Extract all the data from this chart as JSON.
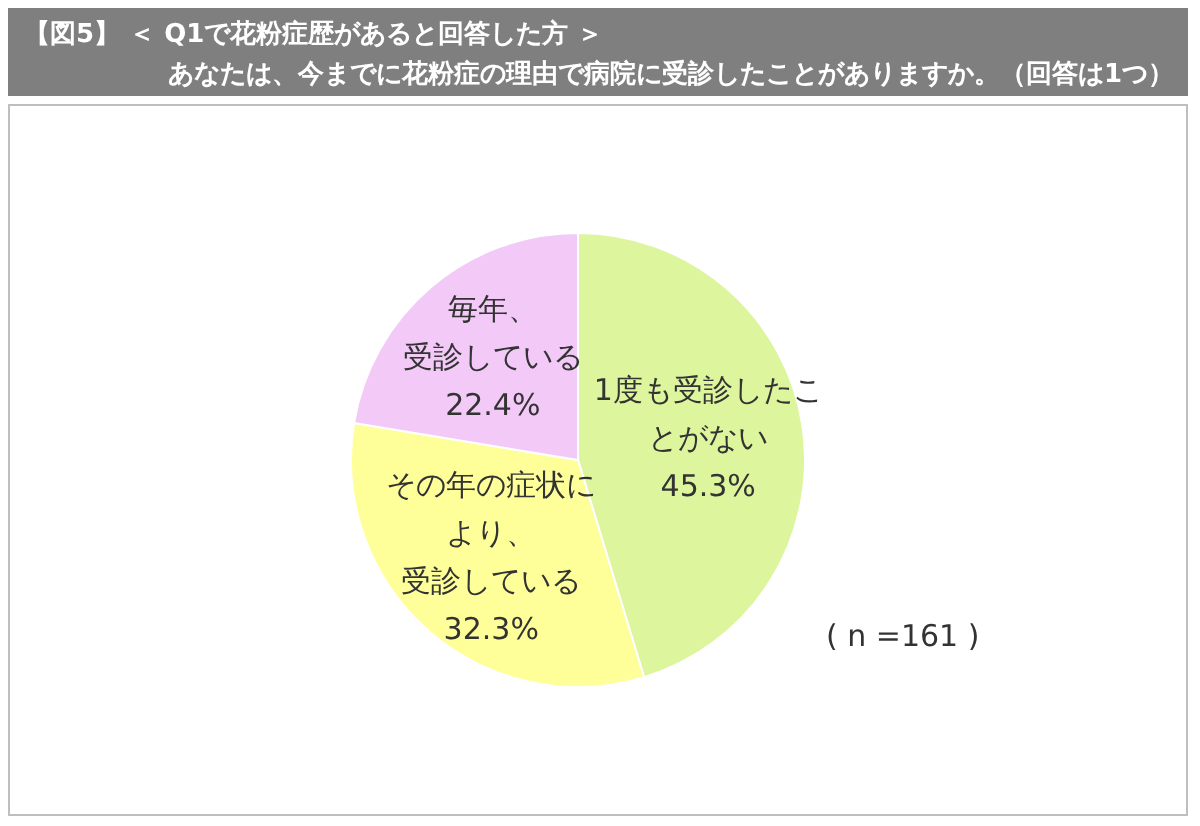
{
  "chart_data": {
    "type": "pie",
    "title": "【図5】 ＜ Q1で花粉症歴があると回答した方 ＞",
    "subtitle": "あなたは、今までに花粉症の理由で病院に受診したことがありますか。（回答は1つ）",
    "categories": [
      "1度も受診したことがない",
      "その年の症状により、受診している",
      "毎年、受診している"
    ],
    "values": [
      45.3,
      32.3,
      22.4
    ],
    "value_labels": [
      "45.3%",
      "32.3%",
      "22.4%"
    ],
    "colors": [
      "#ddf59c",
      "#ffff99",
      "#f2c9f7"
    ],
    "data_labels": true,
    "legend": false,
    "annotations": [
      "( n =161 )"
    ]
  }
}
